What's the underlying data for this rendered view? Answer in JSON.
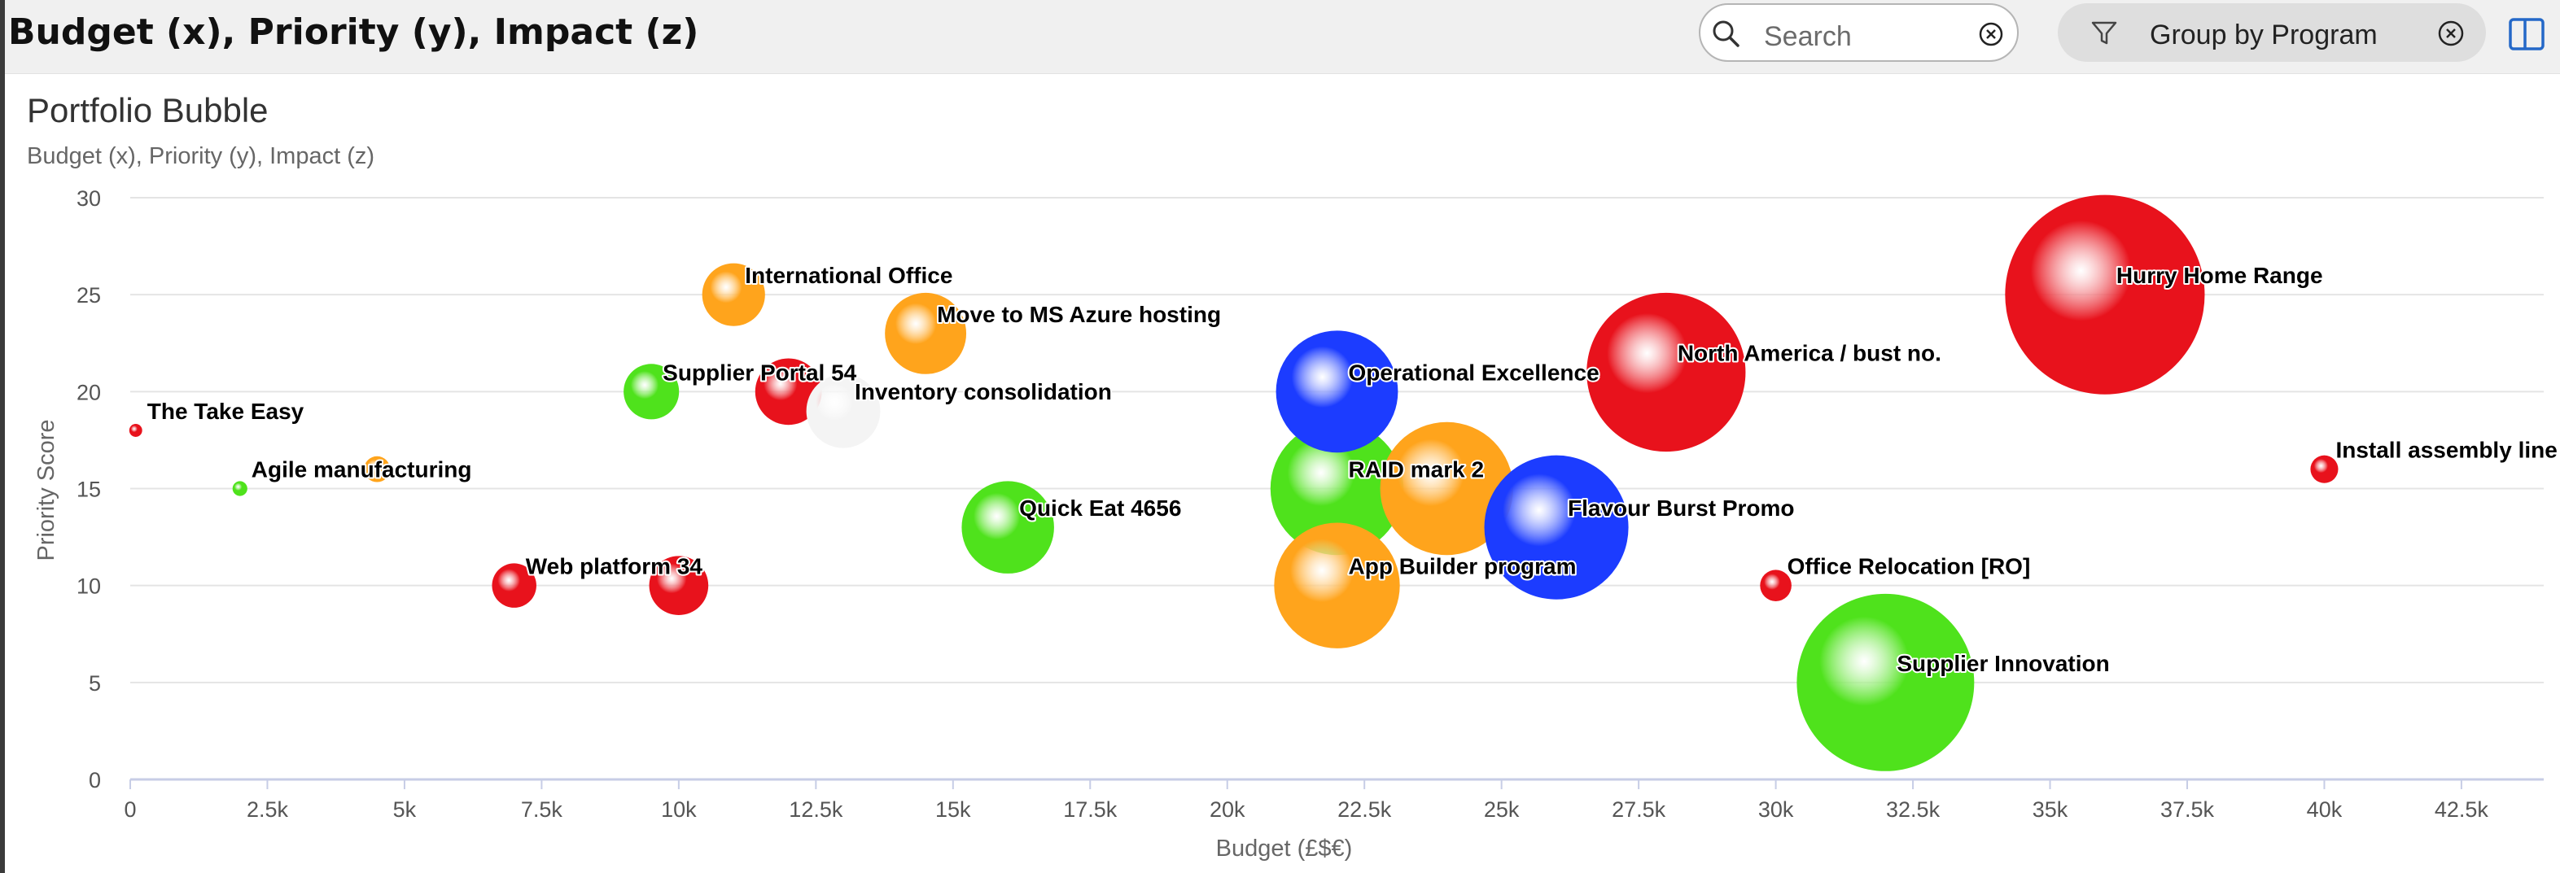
{
  "header": {
    "title": "Budget (x), Priority (y), Impact (z)"
  },
  "search": {
    "placeholder": "Search",
    "icon": "search-icon",
    "clear_icon": "clear-icon"
  },
  "group_chip": {
    "label": "Group by Program",
    "icon": "filter-icon",
    "clear_icon": "clear-icon"
  },
  "panel_toggle": {
    "icon": "panel-toggle-icon"
  },
  "chart_data": {
    "type": "scatter",
    "title": "Portfolio Bubble",
    "subtitle": "Budget (x), Priority (y), Impact (z)",
    "xlabel": "Budget (£$€)",
    "ylabel": "Priority Score",
    "xlim": [
      0,
      44000
    ],
    "ylim": [
      0,
      30
    ],
    "xticks": [
      {
        "value": 0,
        "label": "0"
      },
      {
        "value": 2500,
        "label": "2.5k"
      },
      {
        "value": 5000,
        "label": "5k"
      },
      {
        "value": 7500,
        "label": "7.5k"
      },
      {
        "value": 10000,
        "label": "10k"
      },
      {
        "value": 12500,
        "label": "12.5k"
      },
      {
        "value": 15000,
        "label": "15k"
      },
      {
        "value": 17500,
        "label": "17.5k"
      },
      {
        "value": 20000,
        "label": "20k"
      },
      {
        "value": 22500,
        "label": "22.5k"
      },
      {
        "value": 25000,
        "label": "25k"
      },
      {
        "value": 27500,
        "label": "27.5k"
      },
      {
        "value": 30000,
        "label": "30k"
      },
      {
        "value": 32500,
        "label": "32.5k"
      },
      {
        "value": 35000,
        "label": "35k"
      },
      {
        "value": 37500,
        "label": "37.5k"
      },
      {
        "value": 40000,
        "label": "40k"
      },
      {
        "value": 42500,
        "label": "42.5k"
      }
    ],
    "yticks": [
      {
        "value": 0,
        "label": "0"
      },
      {
        "value": 5,
        "label": "5"
      },
      {
        "value": 10,
        "label": "10"
      },
      {
        "value": 15,
        "label": "15"
      },
      {
        "value": 20,
        "label": "20"
      },
      {
        "value": 25,
        "label": "25"
      },
      {
        "value": 30,
        "label": "30"
      }
    ],
    "grid": true,
    "legend": "none",
    "colors": {
      "red": "#e8121c",
      "orange": "#ffa41c",
      "green": "#4fe21c",
      "blue": "#1c3cff",
      "white": "#f4f4f4"
    },
    "points": [
      {
        "label": "The Take Easy",
        "x": 100,
        "y": 18,
        "z": 0.35,
        "color": "red"
      },
      {
        "label": "Agile manufacturing",
        "x": 2000,
        "y": 15,
        "z": 0.4,
        "color": "green"
      },
      {
        "label": "",
        "x": 4500,
        "y": 16,
        "z": 0.7,
        "color": "orange"
      },
      {
        "label": "Web platform 34",
        "x": 7000,
        "y": 10,
        "z": 1.2,
        "color": "red"
      },
      {
        "label": "",
        "x": 10000,
        "y": 10,
        "z": 1.6,
        "color": "red"
      },
      {
        "label": "Supplier Portal 54",
        "x": 9500,
        "y": 20,
        "z": 1.5,
        "color": "green"
      },
      {
        "label": "International Office",
        "x": 11000,
        "y": 25,
        "z": 1.7,
        "color": "orange"
      },
      {
        "label": "",
        "x": 12000,
        "y": 20,
        "z": 1.8,
        "color": "red"
      },
      {
        "label": "Inventory consolidation",
        "x": 13000,
        "y": 19,
        "z": 2.0,
        "color": "white"
      },
      {
        "label": "Move to MS Azure hosting",
        "x": 14500,
        "y": 23,
        "z": 2.2,
        "color": "orange"
      },
      {
        "label": "Quick Eat 4656",
        "x": 16000,
        "y": 13,
        "z": 2.5,
        "color": "green"
      },
      {
        "label": "RAID mark 2",
        "x": 22000,
        "y": 15,
        "z": 3.6,
        "color": "green"
      },
      {
        "label": "",
        "x": 24000,
        "y": 15,
        "z": 3.6,
        "color": "orange"
      },
      {
        "label": "Operational Excellence",
        "x": 22000,
        "y": 20,
        "z": 3.3,
        "color": "blue"
      },
      {
        "label": "App Builder program",
        "x": 22000,
        "y": 10,
        "z": 3.4,
        "color": "orange"
      },
      {
        "label": "Flavour Burst Promo",
        "x": 26000,
        "y": 13,
        "z": 3.9,
        "color": "blue"
      },
      {
        "label": "North America / bust no.",
        "x": 28000,
        "y": 21,
        "z": 4.3,
        "color": "red"
      },
      {
        "label": "Office Relocation [RO]",
        "x": 30000,
        "y": 10,
        "z": 0.85,
        "color": "red"
      },
      {
        "label": "Supplier Innovation",
        "x": 32000,
        "y": 5,
        "z": 4.8,
        "color": "green"
      },
      {
        "label": "Hurry Home Range",
        "x": 36000,
        "y": 25,
        "z": 5.4,
        "color": "red"
      },
      {
        "label": "Install assembly line [Demo]",
        "x": 40000,
        "y": 16,
        "z": 0.75,
        "color": "red"
      }
    ]
  }
}
